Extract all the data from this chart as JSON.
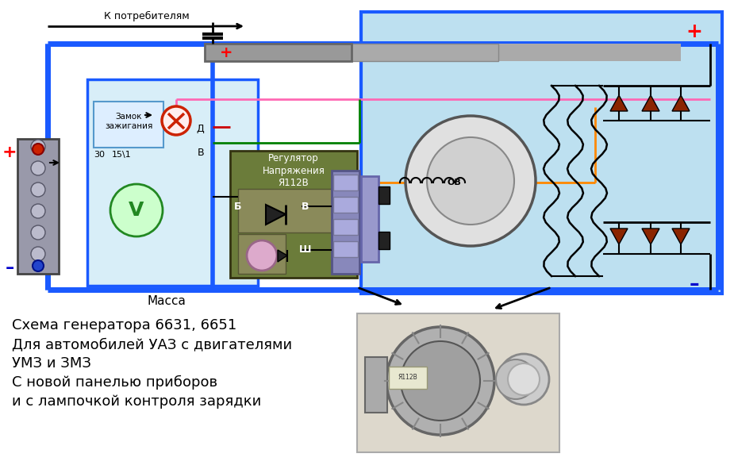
{
  "bg_color": "#ffffff",
  "light_blue_bg": "#bde0f0",
  "panel_bg": "#d8eef8",
  "text_lines": [
    "Схема генератора 6631, 6651",
    "Для автомобилей УАЗ с двигателями",
    "УМЗ и ЗМЗ",
    "С новой панелью приборов",
    "и с лампочкой контроля зарядки"
  ],
  "plus_red": "#ff0000",
  "minus_blue": "#0000cc",
  "blue_wire": "#1a5aff",
  "green_wire": "#008000",
  "pink_wire": "#ff69b4",
  "orange_wire": "#ff8800",
  "red_wire": "#cc0000",
  "black": "#000000",
  "diode_color": "#8B2500",
  "regulator_bg": "#6b7c3a",
  "voltmeter_green": "#44aa44",
  "connector_purple": "#8888bb"
}
